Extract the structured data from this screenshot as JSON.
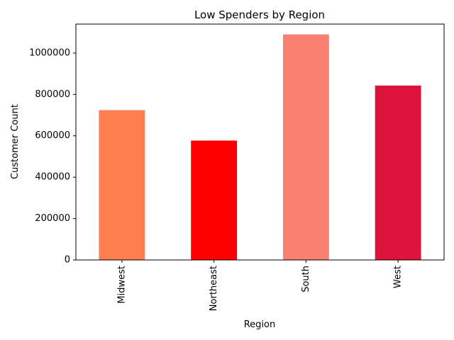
{
  "chart_data": {
    "type": "bar",
    "title": "Low Spenders by Region",
    "xlabel": "Region",
    "ylabel": "Customer Count",
    "categories": [
      "Midwest",
      "Northeast",
      "South",
      "West"
    ],
    "values": [
      724000,
      577000,
      1090000,
      843000
    ],
    "colors": [
      "#ff7f50",
      "#ff0000",
      "#fa8072",
      "#dc143c"
    ],
    "ylim": [
      0,
      1140000
    ],
    "yticks": [
      0,
      200000,
      400000,
      600000,
      800000,
      1000000
    ],
    "ytick_labels": [
      "0",
      "200000",
      "400000",
      "600000",
      "800000",
      "1000000"
    ],
    "grid": false,
    "legend": "none"
  }
}
